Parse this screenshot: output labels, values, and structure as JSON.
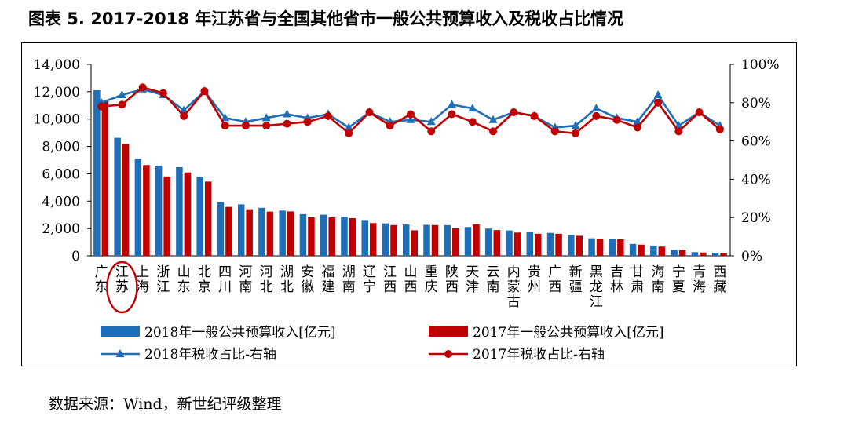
{
  "title": "图表 5. 2017-2018 年江苏省与全国其他省市一般公共预算收入及税收占比情况",
  "source": "数据来源：Wind，新世纪评级整理",
  "colors": {
    "bar2018": "#1f6eb8",
    "bar2017": "#c00000",
    "line2018": "#1f6eb8",
    "line2017": "#c00000",
    "highlight": "#c00000"
  },
  "chart_data": {
    "type": "bar",
    "categories": [
      "广东",
      "江苏",
      "上海",
      "浙江",
      "山东",
      "北京",
      "四川",
      "河南",
      "河北",
      "湖北",
      "安徽",
      "福建",
      "湖南",
      "辽宁",
      "江西",
      "山西",
      "重庆",
      "陕西",
      "天津",
      "云南",
      "内蒙古",
      "贵州",
      "广西",
      "新疆",
      "黑龙江",
      "吉林",
      "甘肃",
      "海南",
      "宁夏",
      "青海",
      "西藏"
    ],
    "highlight_category": "江苏",
    "left_axis": {
      "min": 0,
      "max": 14000,
      "ticks": [
        "0",
        "2,000",
        "4,000",
        "6,000",
        "8,000",
        "10,000",
        "12,000",
        "14,000"
      ]
    },
    "right_axis": {
      "min": 0,
      "max": 100,
      "ticks": [
        "0%",
        "20%",
        "40%",
        "60%",
        "80%",
        "100%"
      ]
    },
    "series": [
      {
        "name": "2018年一般公共预算收入[亿元",
        "kind": "bar",
        "axis": "left",
        "values": [
          12105,
          8630,
          7108,
          6598,
          6485,
          5786,
          3911,
          3766,
          3513,
          3307,
          3049,
          3007,
          2861,
          2616,
          2373,
          2292,
          2266,
          2243,
          2106,
          1994,
          1858,
          1727,
          1681,
          1531,
          1283,
          1241,
          871,
          752,
          437,
          273,
          230
        ]
      },
      {
        "name": "2017年一般公共预算收入[亿元",
        "kind": "bar",
        "axis": "left",
        "values": [
          11320,
          8171,
          6642,
          5804,
          6100,
          5431,
          3578,
          3407,
          3233,
          3248,
          2812,
          2809,
          2757,
          2393,
          2247,
          1868,
          2252,
          2007,
          2310,
          1886,
          1704,
          1614,
          1615,
          1466,
          1244,
          1211,
          816,
          674,
          417,
          246,
          186
        ]
      },
      {
        "name": "2018年税收占比-右轴",
        "kind": "line",
        "axis": "right",
        "values": [
          80,
          84,
          87,
          84,
          76,
          86,
          72,
          70,
          72,
          74,
          72,
          74,
          67,
          75,
          70,
          71,
          70,
          79,
          77,
          71,
          75,
          73,
          67,
          68,
          77,
          72,
          70,
          84,
          68,
          75,
          68
        ]
      },
      {
        "name": "2017年税收占比-右轴",
        "kind": "line",
        "axis": "right",
        "values": [
          78,
          79,
          88,
          85,
          73,
          86,
          68,
          68,
          68,
          69,
          70,
          73,
          64,
          75,
          68,
          74,
          65,
          74,
          70,
          65,
          75,
          73,
          65,
          64,
          73,
          71,
          67,
          80,
          65,
          75,
          66
        ]
      }
    ],
    "legend": [
      "2018年一般公共预算收入[亿元]",
      "2017年一般公共预算收入[亿元]",
      "2018年税收占比-右轴",
      "2017年税收占比-右轴"
    ],
    "legend_position": "bottom"
  }
}
